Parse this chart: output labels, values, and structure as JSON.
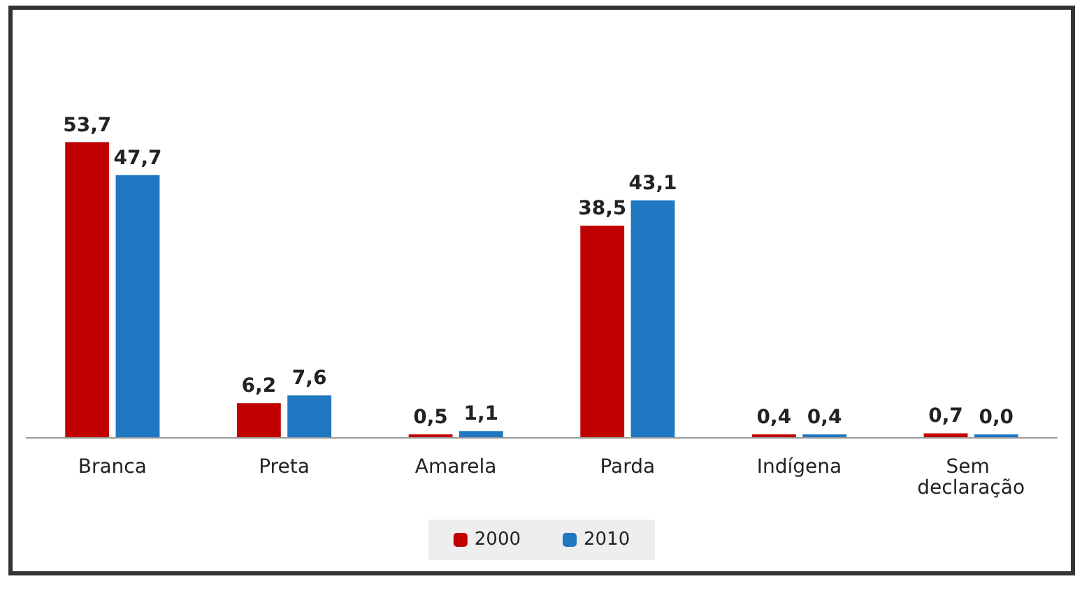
{
  "chart_data": {
    "type": "bar",
    "categories": [
      "Branca",
      "Preta",
      "Amarela",
      "Parda",
      "Indígena",
      "Sem declaração"
    ],
    "series": [
      {
        "name": "2000",
        "color": "#c00000",
        "values": [
          53.7,
          6.2,
          0.5,
          38.5,
          0.4,
          0.7
        ],
        "value_labels": [
          "53,7",
          "6,2",
          "0,5",
          "38,5",
          "0,4",
          "0,7"
        ]
      },
      {
        "name": "2010",
        "color": "#1f78c1",
        "values": [
          47.7,
          7.6,
          1.1,
          43.1,
          0.4,
          0.0
        ],
        "value_labels": [
          "47,7",
          "7,6",
          "1,1",
          "43,1",
          "0,4",
          "0,0"
        ]
      }
    ],
    "legend": "bottom"
  }
}
